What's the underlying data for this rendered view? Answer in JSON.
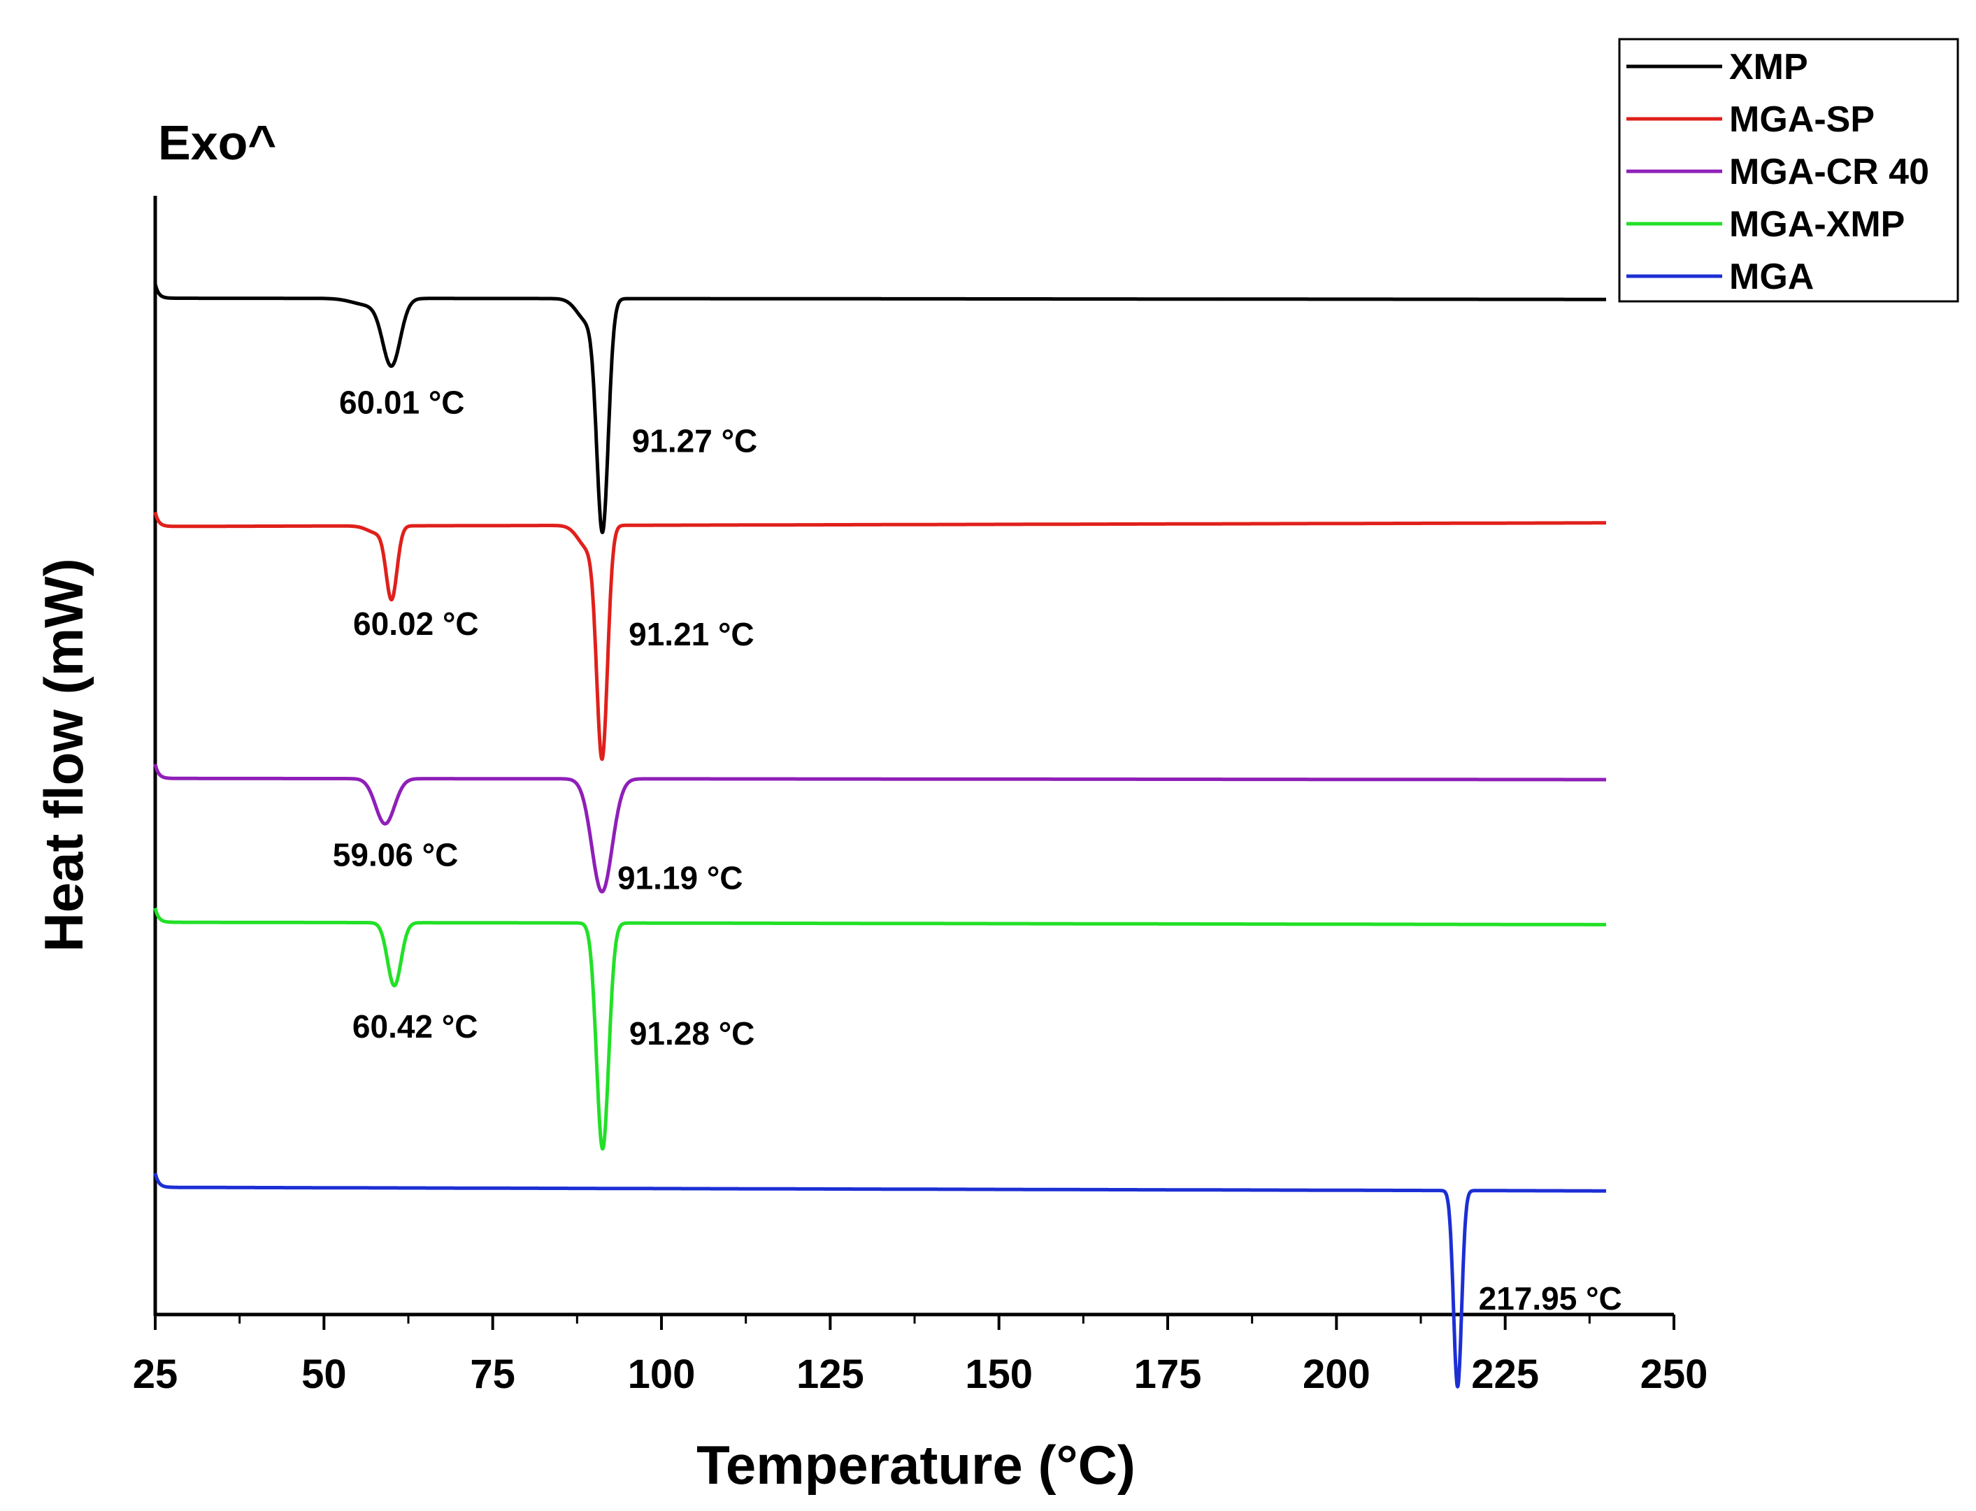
{
  "chart_data": {
    "type": "line",
    "title": "",
    "exo_label": "Exo^",
    "xlabel": "Temperature (°C)",
    "ylabel": "Heat flow (mW)",
    "xlim": [
      25,
      250
    ],
    "x_ticks": [
      25,
      50,
      75,
      100,
      125,
      150,
      175,
      200,
      225,
      250
    ],
    "x_range_data": [
      25,
      240
    ],
    "y_ticks_shown": false,
    "legend_position": "top-right",
    "series": [
      {
        "name": "XMP",
        "color": "#000000",
        "baseline": 8.55,
        "end": 8.54,
        "peaks": [
          {
            "temp": 60.01,
            "label": "60.01 °C",
            "width": 1.3,
            "depth": 0.55,
            "shoulder": true
          },
          {
            "temp": 91.27,
            "label": "91.27 °C",
            "width": 0.85,
            "depth": 1.9,
            "shoulder": true
          }
        ]
      },
      {
        "name": "MGA-SP",
        "color": "#e0201b",
        "baseline": 6.63,
        "end": 6.66,
        "peaks": [
          {
            "temp": 60.02,
            "label": "60.02 °C",
            "width": 0.8,
            "depth": 0.6,
            "shoulder": true
          },
          {
            "temp": 91.21,
            "label": "91.21 °C",
            "width": 0.8,
            "depth": 1.9,
            "shoulder": true
          }
        ]
      },
      {
        "name": "MGA-CR 40",
        "color": "#8f1fb8",
        "baseline": 4.51,
        "end": 4.5,
        "peaks": [
          {
            "temp": 59.06,
            "label": "59.06 °C",
            "width": 1.4,
            "depth": 0.38,
            "shoulder": false
          },
          {
            "temp": 91.19,
            "label": "91.19 °C",
            "width": 1.5,
            "depth": 0.95,
            "shoulder": false
          }
        ]
      },
      {
        "name": "MGA-XMP",
        "color": "#22e027",
        "baseline": 3.3,
        "end": 3.28,
        "peaks": [
          {
            "temp": 60.42,
            "label": "60.42 °C",
            "width": 1.0,
            "depth": 0.53,
            "shoulder": false
          },
          {
            "temp": 91.28,
            "label": "91.28 °C",
            "width": 0.9,
            "depth": 1.9,
            "shoulder": false
          }
        ]
      },
      {
        "name": "MGA",
        "color": "#1c2fd4",
        "baseline": 1.07,
        "end": 1.04,
        "peaks": [
          {
            "temp": 217.95,
            "label": "217.95 °C",
            "width": 0.6,
            "depth": 1.65,
            "shoulder": false
          }
        ]
      }
    ]
  }
}
